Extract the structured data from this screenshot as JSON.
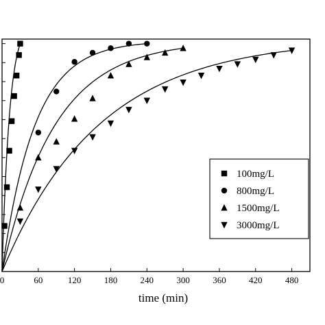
{
  "chart_data": {
    "type": "scatter",
    "xlabel": "time (min)",
    "ylabel": "",
    "xlim": [
      0,
      510
    ],
    "ylim": [
      0,
      1.02
    ],
    "x_ticks": [
      "0",
      "60",
      "120",
      "180",
      "240",
      "300",
      "360",
      "420",
      "480"
    ],
    "x_tick_values": [
      0,
      60,
      120,
      180,
      240,
      300,
      360,
      420,
      480
    ],
    "y_tick_values": [
      0,
      0.0833,
      0.1667,
      0.25,
      0.3333,
      0.4167,
      0.5,
      0.5833,
      0.6667,
      0.75,
      0.8333,
      0.9167,
      1.0
    ],
    "legend_position": "center-right",
    "series": [
      {
        "name": "100mg/L",
        "marker": "square",
        "x": [
          0,
          4,
          8,
          12,
          16,
          20,
          24,
          28,
          30
        ],
        "y": [
          0,
          0.2,
          0.37,
          0.53,
          0.66,
          0.77,
          0.86,
          0.95,
          1.0
        ],
        "fit_rate": 0.08
      },
      {
        "name": "800mg/L",
        "marker": "circle",
        "x": [
          0,
          60,
          90,
          120,
          150,
          180,
          210,
          240
        ],
        "y": [
          0,
          0.61,
          0.79,
          0.92,
          0.96,
          0.98,
          1.0,
          1.0
        ],
        "fit_rate": 0.0185
      },
      {
        "name": "1500mg/L",
        "marker": "triangle-up",
        "x": [
          0,
          30,
          60,
          90,
          120,
          150,
          180,
          210,
          240,
          270,
          300
        ],
        "y": [
          0,
          0.28,
          0.5,
          0.57,
          0.67,
          0.76,
          0.86,
          0.91,
          0.94,
          0.96,
          0.98
        ],
        "fit_rate": 0.0115
      },
      {
        "name": "3000mg/L",
        "marker": "triangle-down",
        "x": [
          0,
          30,
          60,
          90,
          120,
          150,
          180,
          210,
          240,
          270,
          300,
          330,
          360,
          390,
          420,
          450,
          480
        ],
        "y": [
          0,
          0.22,
          0.36,
          0.45,
          0.53,
          0.59,
          0.65,
          0.71,
          0.75,
          0.8,
          0.83,
          0.86,
          0.89,
          0.91,
          0.93,
          0.95,
          0.97
        ],
        "fit_rate": 0.0062
      }
    ]
  }
}
